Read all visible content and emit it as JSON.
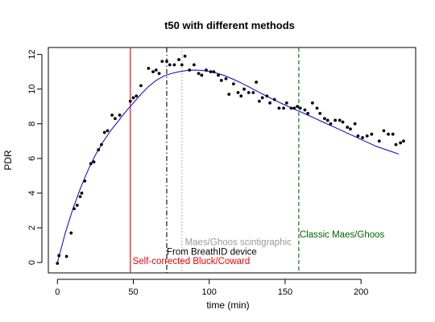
{
  "chart_data": {
    "type": "scatter",
    "title": "t50 with different methods",
    "xlabel": "time (min)",
    "ylabel": "PDR",
    "xlim": [
      -6,
      236
    ],
    "ylim": [
      -0.6,
      12.4
    ],
    "x_ticks": [
      0,
      50,
      100,
      150,
      200
    ],
    "y_ticks": [
      0,
      2,
      4,
      6,
      8,
      10,
      12
    ],
    "grid": false,
    "points": [
      [
        0,
        -0.05
      ],
      [
        1,
        0.4
      ],
      [
        6,
        0.35
      ],
      [
        9,
        1.7
      ],
      [
        11,
        3.1
      ],
      [
        13,
        3.3
      ],
      [
        15,
        3.8
      ],
      [
        16,
        4.0
      ],
      [
        18,
        4.7
      ],
      [
        22,
        5.7
      ],
      [
        24,
        5.8
      ],
      [
        27,
        6.5
      ],
      [
        29,
        6.8
      ],
      [
        31,
        7.5
      ],
      [
        33,
        7.6
      ],
      [
        36,
        8.5
      ],
      [
        38,
        8.3
      ],
      [
        41,
        8.5
      ],
      [
        48,
        9.3
      ],
      [
        50,
        9.5
      ],
      [
        52,
        9.6
      ],
      [
        55,
        10.2
      ],
      [
        60,
        11.2
      ],
      [
        63,
        11.0
      ],
      [
        65,
        11.1
      ],
      [
        67,
        10.9
      ],
      [
        69,
        11.6
      ],
      [
        72,
        11.6
      ],
      [
        74,
        11.4
      ],
      [
        77,
        11.4
      ],
      [
        80,
        11.7
      ],
      [
        82,
        11.4
      ],
      [
        84,
        11.9
      ],
      [
        87,
        11.1
      ],
      [
        90,
        11.4
      ],
      [
        93,
        10.9
      ],
      [
        95,
        10.8
      ],
      [
        98,
        11.1
      ],
      [
        101,
        11.0
      ],
      [
        103,
        11.0
      ],
      [
        106,
        10.8
      ],
      [
        108,
        10.5
      ],
      [
        111,
        10.6
      ],
      [
        113,
        9.7
      ],
      [
        116,
        10.3
      ],
      [
        119,
        9.8
      ],
      [
        121,
        9.6
      ],
      [
        123,
        10.0
      ],
      [
        126,
        9.8
      ],
      [
        129,
        9.8
      ],
      [
        131,
        10.4
      ],
      [
        133,
        9.3
      ],
      [
        135,
        9.5
      ],
      [
        138,
        9.6
      ],
      [
        140,
        9.2
      ],
      [
        143,
        9.4
      ],
      [
        146,
        8.9
      ],
      [
        149,
        8.9
      ],
      [
        151,
        9.2
      ],
      [
        154,
        8.9
      ],
      [
        156,
        8.9
      ],
      [
        158,
        9.0
      ],
      [
        160,
        8.9
      ],
      [
        163,
        8.8
      ],
      [
        165,
        8.6
      ],
      [
        168,
        9.2
      ],
      [
        171,
        8.9
      ],
      [
        173,
        8.6
      ],
      [
        176,
        8.3
      ],
      [
        178,
        8.2
      ],
      [
        180,
        8.0
      ],
      [
        183,
        8.2
      ],
      [
        186,
        8.2
      ],
      [
        188,
        8.1
      ],
      [
        191,
        7.8
      ],
      [
        193,
        7.7
      ],
      [
        196,
        8.0
      ],
      [
        198,
        7.3
      ],
      [
        201,
        7.2
      ],
      [
        204,
        7.3
      ],
      [
        207,
        7.4
      ],
      [
        212,
        7.0
      ],
      [
        215,
        7.6
      ],
      [
        218,
        7.4
      ],
      [
        221,
        7.4
      ],
      [
        223,
        6.8
      ],
      [
        226,
        6.9
      ],
      [
        228,
        7.0
      ]
    ],
    "fit_line": {
      "color": "#0000cc",
      "x": [
        0,
        5,
        10,
        15,
        20,
        25,
        30,
        35,
        40,
        45,
        50,
        55,
        60,
        65,
        70,
        75,
        80,
        85,
        90,
        95,
        100,
        105,
        110,
        115,
        120,
        125,
        130,
        135,
        140,
        145,
        150,
        155,
        160,
        165,
        170,
        175,
        180,
        185,
        190,
        195,
        200,
        205,
        210,
        215,
        220,
        225
      ],
      "y": [
        0.0,
        1.65,
        3.05,
        4.25,
        5.3,
        6.2,
        6.95,
        7.6,
        8.15,
        8.7,
        9.2,
        9.7,
        10.15,
        10.5,
        10.75,
        10.9,
        11.0,
        11.07,
        11.1,
        11.08,
        11.02,
        10.92,
        10.78,
        10.6,
        10.4,
        10.18,
        9.95,
        9.72,
        9.5,
        9.28,
        9.08,
        8.88,
        8.7,
        8.5,
        8.3,
        8.1,
        7.9,
        7.7,
        7.5,
        7.3,
        7.1,
        6.9,
        6.7,
        6.55,
        6.4,
        6.25
      ]
    },
    "vlines": [
      {
        "x": 48,
        "color": "#ee0000",
        "style": "solid",
        "label": "Self-corrected Bluck/Coward",
        "label_x": 49.5,
        "label_y": -0.1,
        "label_color": "#ee0000"
      },
      {
        "x": 72,
        "color": "#000000",
        "style": "dashdot",
        "label": "From BreathID device",
        "label_x": 72,
        "label_y": 0.45,
        "label_color": "#000000"
      },
      {
        "x": 82,
        "color": "#a0a0a0",
        "style": "dotted",
        "label": "Maes/Ghoos scintigraphic",
        "label_x": 84,
        "label_y": 1.0,
        "label_color": "#999999"
      },
      {
        "x": 159,
        "color": "#006400",
        "style": "dashed",
        "label": "Classic Maes/Ghoos",
        "label_x": 159.5,
        "label_y": 1.45,
        "label_color": "#006400"
      }
    ]
  }
}
